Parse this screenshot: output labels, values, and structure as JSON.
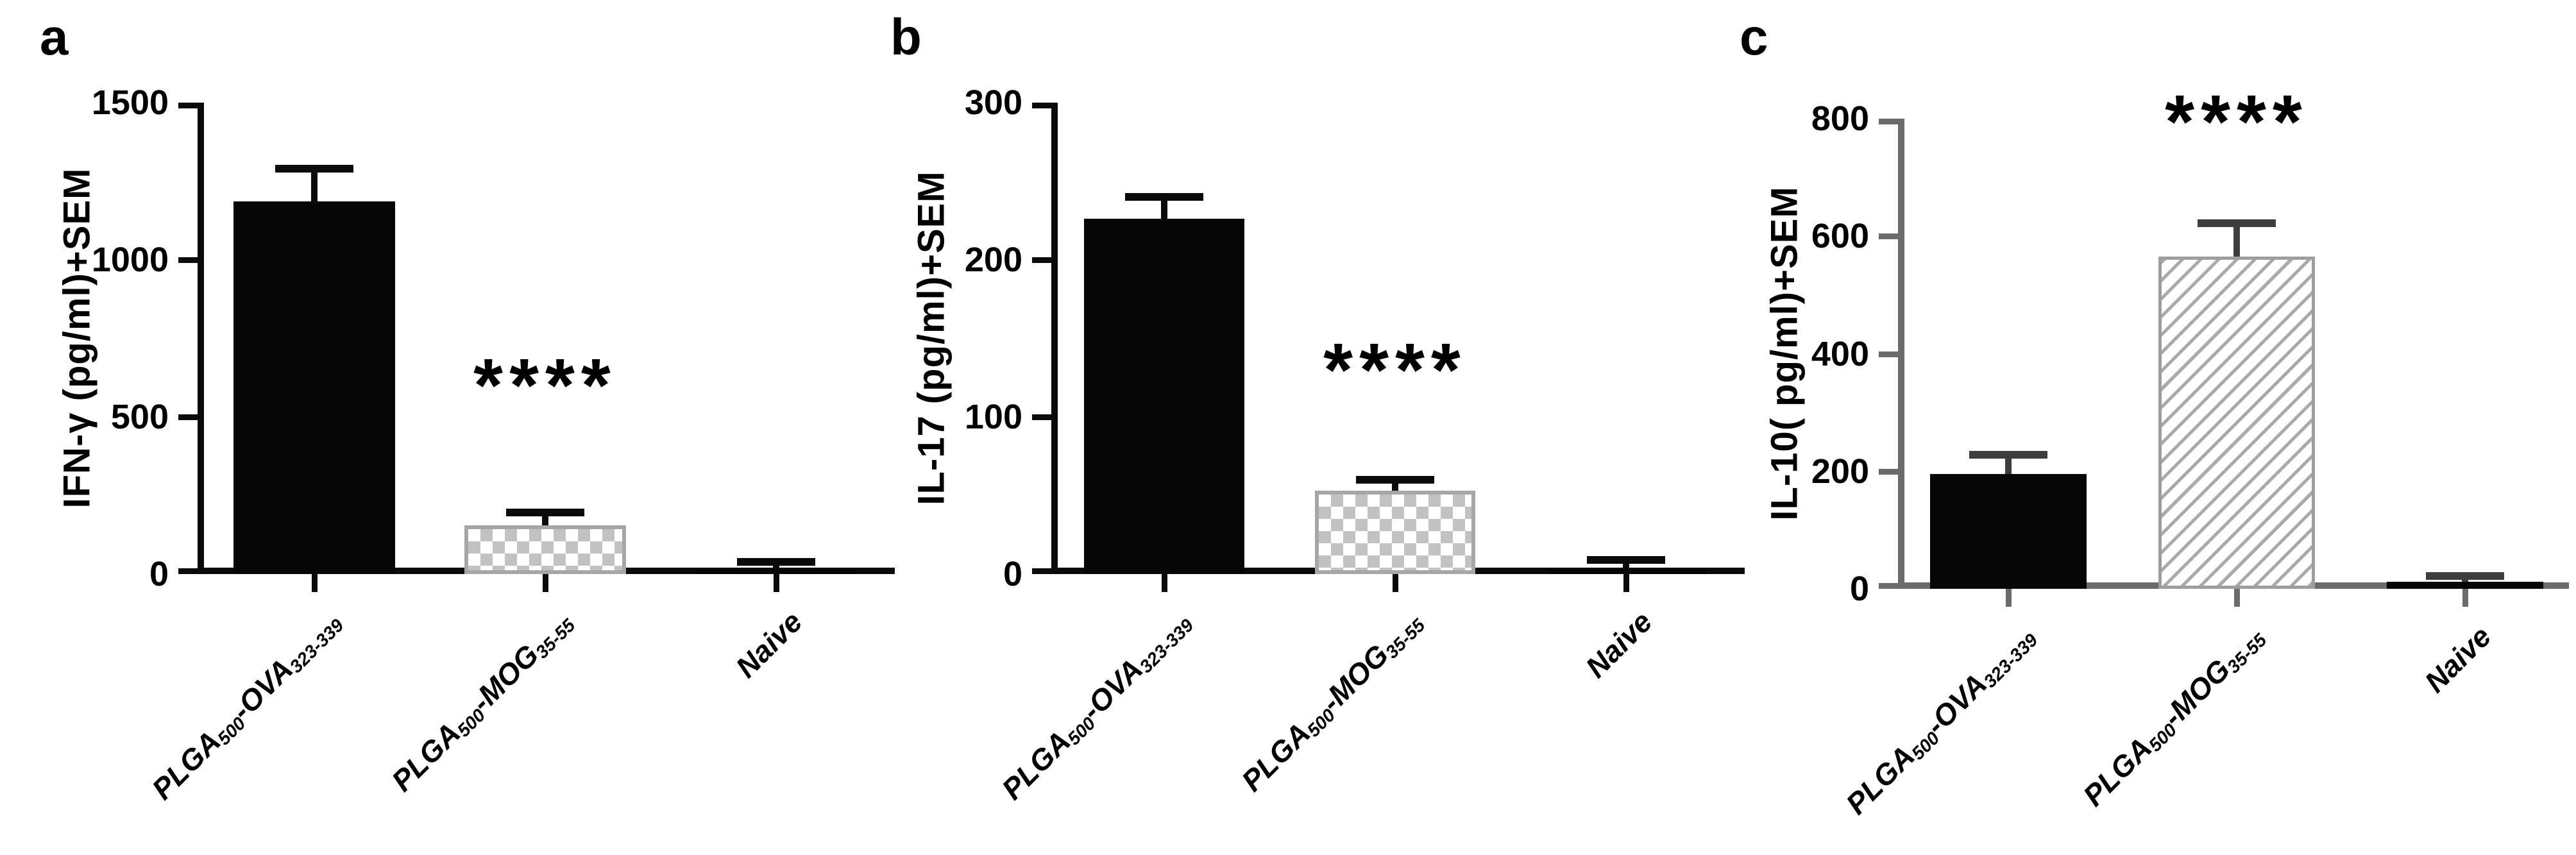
{
  "figure": {
    "background_color": "#ffffff",
    "description": "Cytokine levels (ELISA) bar charts with SEM error bars"
  },
  "chart_data": [
    {
      "type": "bar",
      "panel": "a",
      "title": "",
      "xlabel": "",
      "ylabel": "IFN-γ (pg/ml)+SEM",
      "ylim": [
        0,
        1500
      ],
      "yticks": [
        0,
        500,
        1000,
        1500
      ],
      "grid": false,
      "legend": "none",
      "categories": [
        {
          "parts": [
            {
              "t": "PLGA"
            },
            {
              "t": "500",
              "sub": true
            },
            {
              "t": "-OVA"
            },
            {
              "t": "323-339",
              "sub": true
            }
          ]
        },
        {
          "parts": [
            {
              "t": "PLGA"
            },
            {
              "t": "500",
              "sub": true
            },
            {
              "t": "-MOG"
            },
            {
              "t": "35-55",
              "sub": true
            }
          ]
        },
        {
          "parts": [
            {
              "t": "Naive"
            }
          ]
        }
      ],
      "values": [
        1185,
        155,
        20
      ],
      "sem": [
        105,
        40,
        18
      ],
      "bar_styles": [
        "solid-black",
        "checker",
        "solid-black"
      ],
      "significance": {
        "label": "****",
        "category_index": 1,
        "y_value": 600
      },
      "axis_color": "#0a0a0a",
      "error_color": "#0a0a0a"
    },
    {
      "type": "bar",
      "panel": "b",
      "title": "",
      "xlabel": "",
      "ylabel": "IL-17 (pg/ml)+SEM",
      "ylim": [
        0,
        300
      ],
      "yticks": [
        0,
        100,
        200,
        300
      ],
      "grid": false,
      "legend": "none",
      "categories": [
        {
          "parts": [
            {
              "t": "PLGA"
            },
            {
              "t": "500",
              "sub": true
            },
            {
              "t": "-OVA"
            },
            {
              "t": "323-339",
              "sub": true
            }
          ]
        },
        {
          "parts": [
            {
              "t": "PLGA"
            },
            {
              "t": "500",
              "sub": true
            },
            {
              "t": "-MOG"
            },
            {
              "t": "35-55",
              "sub": true
            }
          ]
        },
        {
          "parts": [
            {
              "t": "Naive"
            }
          ]
        }
      ],
      "values": [
        226,
        53,
        4
      ],
      "sem": [
        14,
        7,
        5
      ],
      "bar_styles": [
        "solid-black",
        "checker",
        "solid-black"
      ],
      "significance": {
        "label": "****",
        "category_index": 1,
        "y_value": 130
      },
      "axis_color": "#0a0a0a",
      "error_color": "#0a0a0a"
    },
    {
      "type": "bar",
      "panel": "c",
      "title": "",
      "xlabel": "",
      "ylabel": "IL-10( pg/ml)+SEM",
      "ylim": [
        0,
        800
      ],
      "yticks": [
        0,
        200,
        400,
        600,
        800
      ],
      "grid": false,
      "legend": "none",
      "categories": [
        {
          "parts": [
            {
              "t": "PLGA"
            },
            {
              "t": "500",
              "sub": true
            },
            {
              "t": "-OVA"
            },
            {
              "t": "323-339",
              "sub": true
            }
          ]
        },
        {
          "parts": [
            {
              "t": "PLGA"
            },
            {
              "t": "500",
              "sub": true
            },
            {
              "t": "-MOG"
            },
            {
              "t": "35-55",
              "sub": true
            }
          ]
        },
        {
          "parts": [
            {
              "t": "Naive"
            }
          ]
        }
      ],
      "values": [
        195,
        565,
        12
      ],
      "sem": [
        33,
        57,
        10
      ],
      "bar_styles": [
        "solid-black",
        "diagonal-hatch",
        "solid-black"
      ],
      "significance": {
        "label": "****",
        "category_index": 1,
        "y_value": 795
      },
      "axis_color": "#6b6b6b",
      "error_color": "#3d3d3d"
    }
  ]
}
